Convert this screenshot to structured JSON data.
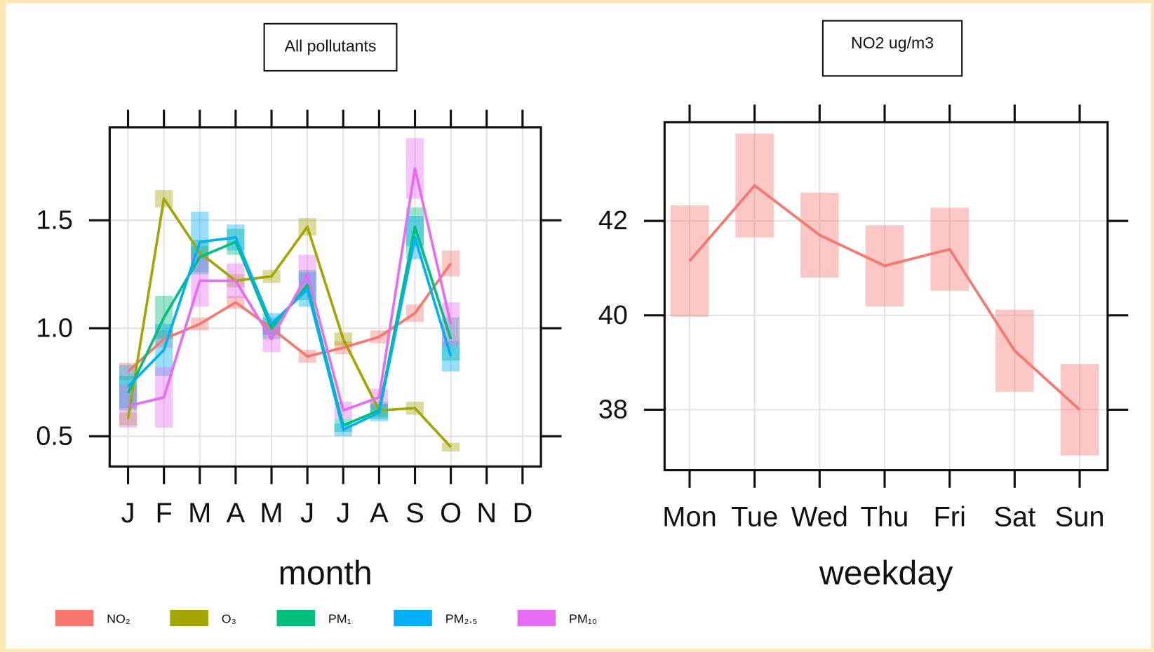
{
  "chart_data": [
    {
      "type": "line",
      "title": "All pollutants",
      "x_label": "month",
      "categories": [
        "J",
        "F",
        "M",
        "A",
        "M",
        "J",
        "J",
        "A",
        "S",
        "O",
        "N",
        "D"
      ],
      "ylim": [
        0.36,
        1.93
      ],
      "yticks": [
        0.5,
        {
          "value": 1,
          "label": "1.0"
        },
        1.5
      ],
      "grid": true,
      "series": [
        {
          "name": "NO₂",
          "color": "#f8766d",
          "values": [
            0.8,
            0.95,
            1.02,
            1.12,
            1.0,
            0.87,
            0.91,
            0.96,
            1.07,
            1.3,
            null,
            null
          ],
          "errors": [
            0.04,
            0.04,
            0.03,
            0.03,
            0.03,
            0.03,
            0.03,
            0.03,
            0.04,
            0.06,
            null,
            null
          ]
        },
        {
          "name": "O₃",
          "color": "#a3a500",
          "values": [
            0.58,
            1.6,
            1.35,
            1.22,
            1.24,
            1.47,
            0.95,
            0.62,
            0.63,
            0.45,
            null,
            null
          ],
          "errors": [
            0.03,
            0.04,
            0.03,
            0.03,
            0.03,
            0.04,
            0.03,
            0.03,
            0.03,
            0.02,
            null,
            null
          ]
        },
        {
          "name": "PM₁",
          "color": "#00bf7d",
          "values": [
            0.7,
            1.05,
            1.33,
            1.4,
            1.0,
            1.2,
            0.55,
            0.62,
            1.47,
            0.95,
            null,
            null
          ],
          "errors": [
            0.08,
            0.1,
            0.08,
            0.06,
            0.05,
            0.07,
            0.03,
            0.04,
            0.09,
            0.1,
            null,
            null
          ]
        },
        {
          "name": "PM₂.₅",
          "color": "#00b0f6",
          "values": [
            0.73,
            0.9,
            1.4,
            1.42,
            1.02,
            1.18,
            0.53,
            0.61,
            1.42,
            0.87,
            null,
            null
          ],
          "errors": [
            0.1,
            0.12,
            0.14,
            0.06,
            0.05,
            0.08,
            0.03,
            0.04,
            0.1,
            0.07,
            null,
            null
          ]
        },
        {
          "name": "PM₁₀",
          "color": "#e76bf3",
          "values": [
            0.64,
            0.68,
            1.22,
            1.22,
            0.95,
            1.25,
            0.62,
            0.68,
            1.74,
            1.02,
            null,
            null
          ],
          "errors": [
            0.1,
            0.14,
            0.12,
            0.08,
            0.06,
            0.09,
            0.04,
            0.04,
            0.14,
            0.1,
            null,
            null
          ]
        }
      ]
    },
    {
      "type": "line",
      "title": "NO2 ug/m3",
      "x_label": "weekday",
      "categories": [
        "Mon",
        "Tue",
        "Wed",
        "Thu",
        "Fri",
        "Sat",
        "Sun"
      ],
      "ylim": [
        36.72,
        44.09
      ],
      "yticks": [
        38,
        40,
        42
      ],
      "grid": true,
      "series": [
        {
          "color": "#f8766d",
          "values": [
            41.15,
            42.75,
            41.7,
            41.05,
            41.4,
            39.25,
            38.0
          ],
          "errors": [
            1.18,
            1.1,
            0.9,
            0.86,
            0.88,
            0.87,
            0.97
          ]
        }
      ]
    }
  ]
}
